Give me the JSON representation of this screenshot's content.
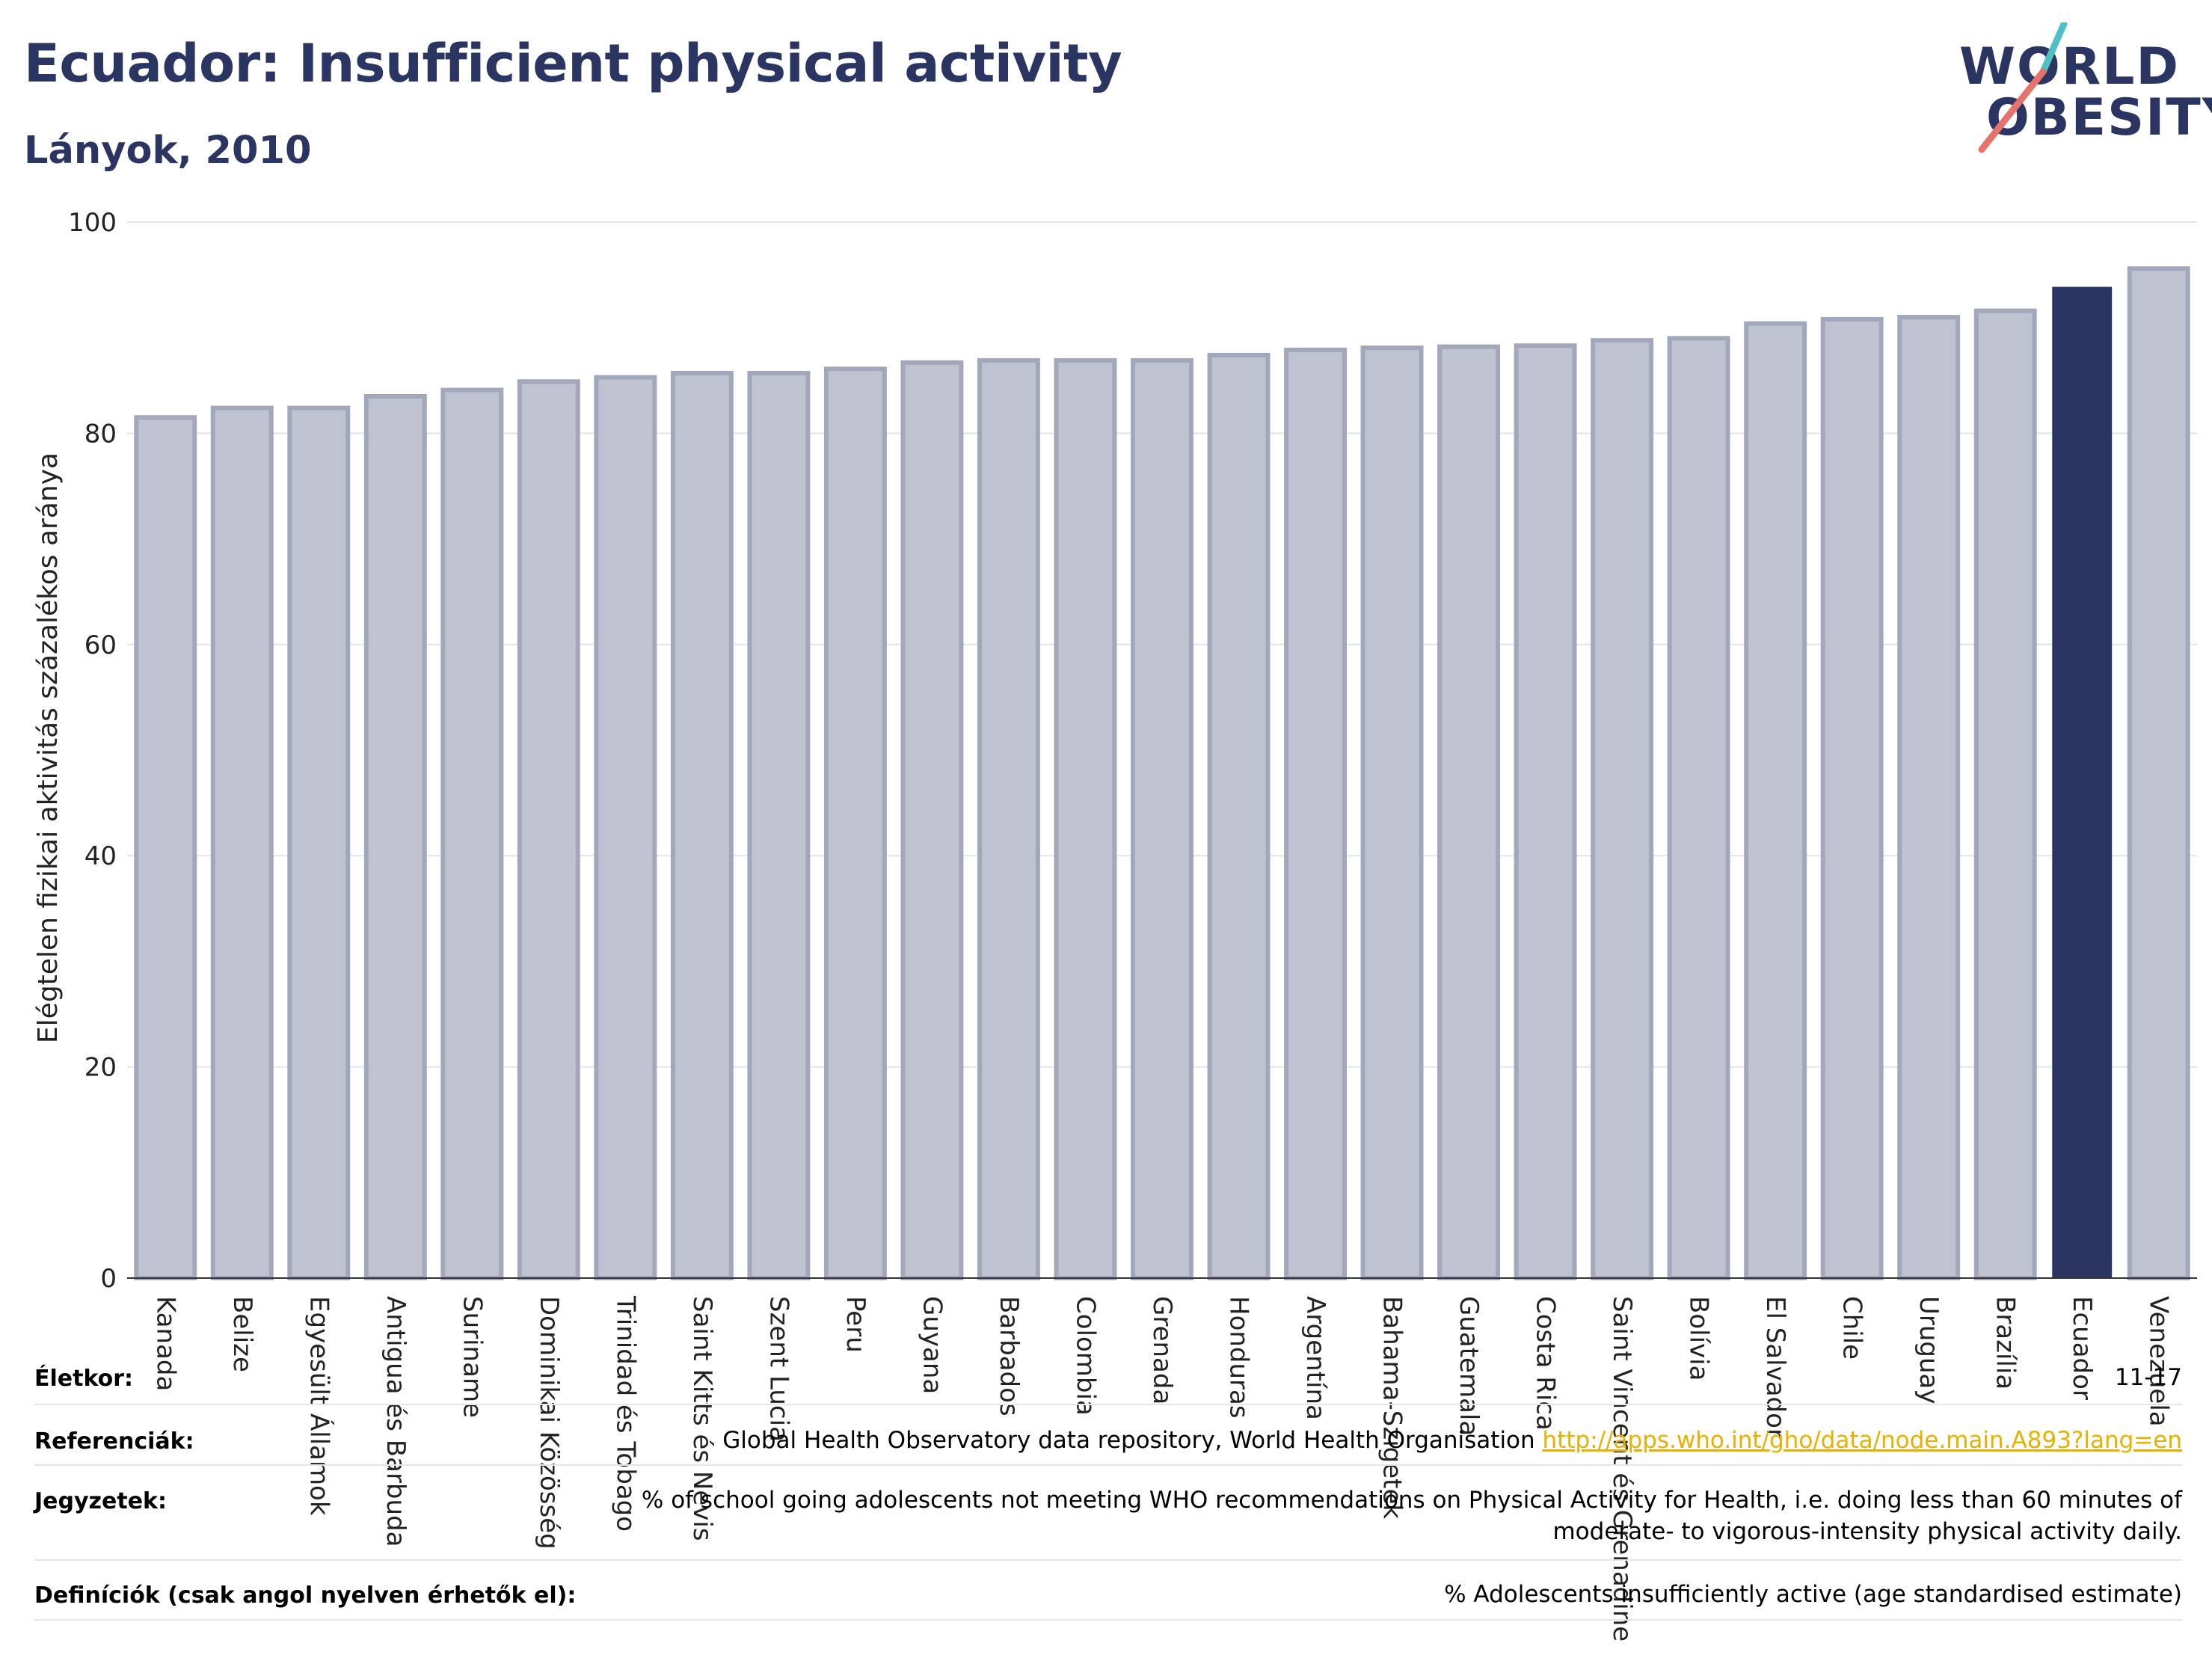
{
  "header": {
    "title": "Ecuador: Insufficient physical activity",
    "subtitle": "Lányok, 2010"
  },
  "logo": {
    "line1": "WORLD",
    "line2": "OBESITY",
    "accent_colors": [
      "#4fc1c5",
      "#e5736b"
    ]
  },
  "chart_data": {
    "type": "bar",
    "ylabel": "Elégtelen fizikai aktivitás százalékos aránya",
    "ylim": [
      0,
      100
    ],
    "yticks": [
      0,
      20,
      40,
      60,
      80,
      100
    ],
    "grid": true,
    "highlight": "Ecuador",
    "colors": {
      "default": "#bfc2cf",
      "default_edge": "#a2a7bb",
      "highlight": "#2b3561"
    },
    "categories": [
      "Kanada",
      "Belize",
      "Egyesült Államok",
      "Antigua és Barbuda",
      "Suriname",
      "Dominikai Közösség",
      "Trinidad és Tobago",
      "Saint Kitts és Nevis",
      "Szent Lucia",
      "Peru",
      "Guyana",
      "Barbados",
      "Colombia",
      "Grenada",
      "Honduras",
      "Argentína",
      "Bahama-Szigetek",
      "Guatemala",
      "Costa Rica",
      "Saint Vincent és Grenadine",
      "Bolívia",
      "El Salvador",
      "Chile",
      "Uruguay",
      "Brazília",
      "Ecuador",
      "Venezuela"
    ],
    "values": [
      81.5,
      82.4,
      82.4,
      83.5,
      84.1,
      84.9,
      85.3,
      85.7,
      85.7,
      86.1,
      86.7,
      86.9,
      86.9,
      86.9,
      87.4,
      87.9,
      88.1,
      88.2,
      88.3,
      88.8,
      89.0,
      90.4,
      90.8,
      91.0,
      91.6,
      93.8,
      95.6
    ]
  },
  "footer": {
    "age": {
      "label": "Életkor:",
      "value": "11-17"
    },
    "references": {
      "label": "Referenciák:",
      "source": "Global Health Observatory data repository, World Health Organisation",
      "link": "http://apps.who.int/gho/data/node.main.A893?lang=en"
    },
    "notes": {
      "label": "Jegyzetek:",
      "line1": "% of school going adolescents not meeting WHO recommendations on Physical Activity for Health, i.e. doing less than 60 minutes of",
      "line2": "moderate- to vigorous-intensity physical activity daily."
    },
    "definitions": {
      "label": "Definíciók (csak angol nyelven érhetők el):",
      "value": "% Adolescents insufficiently active (age standardised estimate)"
    }
  }
}
